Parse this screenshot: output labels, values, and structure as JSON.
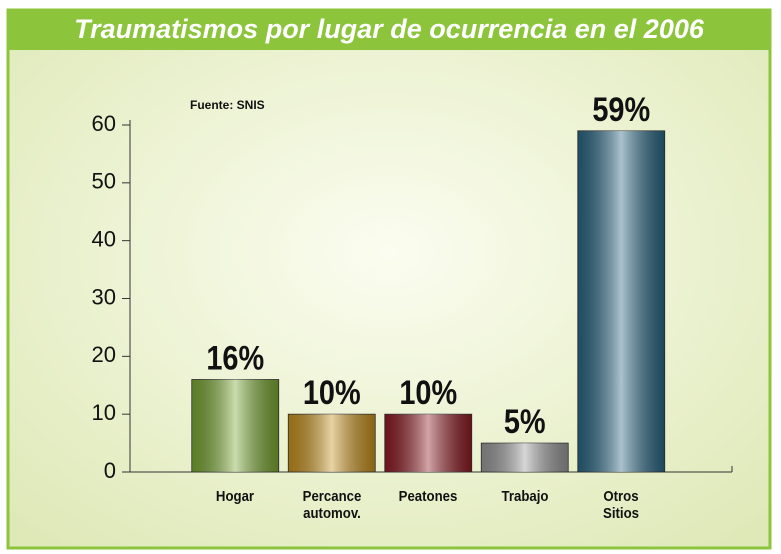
{
  "chart_data": {
    "type": "bar",
    "title": "Traumatismos por lugar de ocurrencia en el 2006",
    "annotation": "Fuente: SNIS",
    "categories": [
      "Hogar",
      "Percance automov.",
      "Peatones",
      "Trabajo",
      "Otros Sitios"
    ],
    "values": [
      16,
      10,
      10,
      5,
      59
    ],
    "value_labels": [
      "16%",
      "10%",
      "10%",
      "5%",
      "59%"
    ],
    "colors": [
      "#7aa832",
      "#c8921c",
      "#8e1a22",
      "#9a9a9a",
      "#2a6784"
    ],
    "ylim": [
      0,
      60
    ],
    "yticks": [
      0,
      10,
      20,
      30,
      40,
      50,
      60
    ],
    "grid": false
  }
}
